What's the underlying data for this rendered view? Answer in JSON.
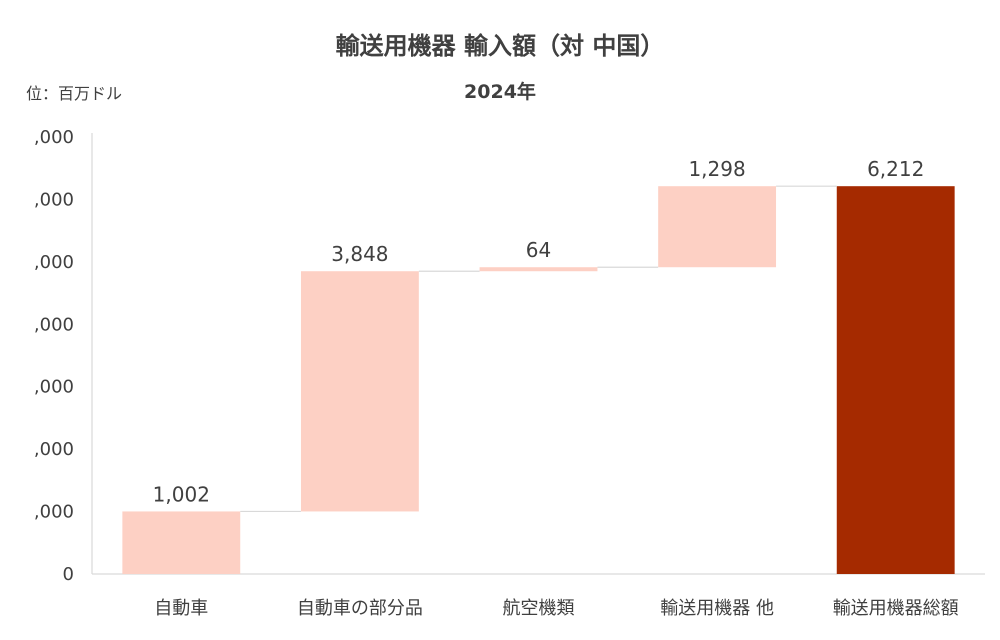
{
  "chart_data": {
    "type": "bar",
    "subtype": "waterfall",
    "title": "輸送用機器 輸入額（対 中国）",
    "subtitle": "2024年",
    "unit_label": "位：百万ドル",
    "categories": [
      "自動車",
      "自動車の部分品",
      "航空機類",
      "輸送用機器 他",
      "輸送用機器総額"
    ],
    "values": [
      1002,
      3848,
      64,
      1298,
      6212
    ],
    "data_labels": [
      "1,002",
      "3,848",
      "64",
      "1,298",
      "6,212"
    ],
    "is_total": [
      false,
      false,
      false,
      false,
      true
    ],
    "y_tick_labels": [
      "0",
      ",000",
      ",000",
      ",000",
      ",000",
      ",000",
      ",000",
      ",000"
    ],
    "ylim": [
      0,
      7000
    ],
    "colors": {
      "increment": "#fdd0c4",
      "total": "#a52a00",
      "axis": "#d9d9d9",
      "connector": "#d9d9d9",
      "text": "#404040"
    },
    "grid": false,
    "legend": "none"
  }
}
